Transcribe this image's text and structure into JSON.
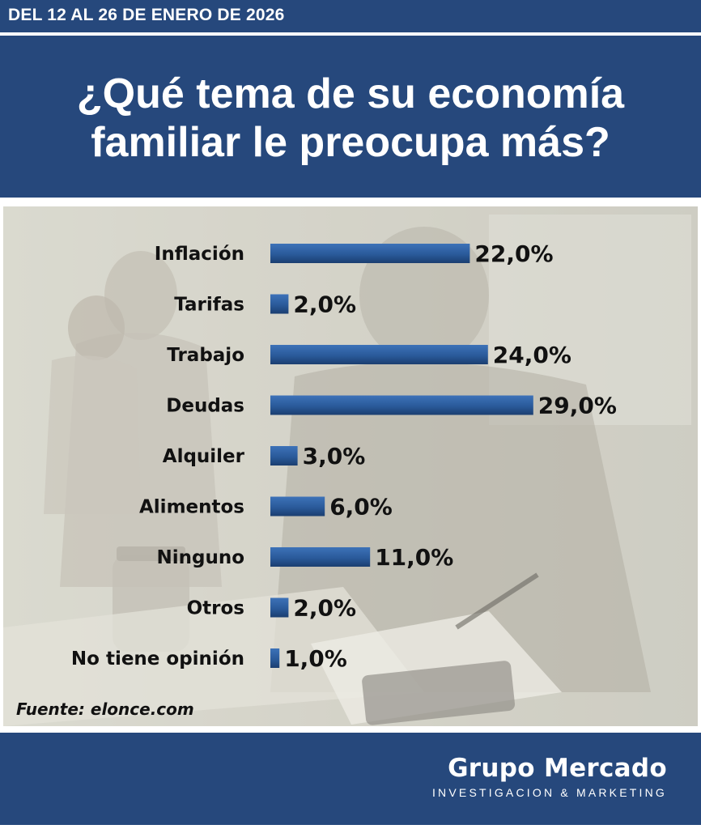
{
  "header": {
    "date_range": "DEL 12 AL 26 DE ENERO DE 2026"
  },
  "title": {
    "line1": "¿Qué tema de su economía",
    "line2": "familiar le preocupa más?"
  },
  "source": "Fuente: elonce.com",
  "brand": {
    "name": "Grupo Mercado",
    "tagline": "INVESTIGACION & MARKETING"
  },
  "colors": {
    "navy": "#26487c",
    "bar": "#2e5fa0",
    "bar_dark": "#1c3f73"
  },
  "chart_data": {
    "type": "bar",
    "orientation": "horizontal",
    "categories": [
      "Inflación",
      "Tarifas",
      "Trabajo",
      "Deudas",
      "Alquiler",
      "Alimentos",
      "Ninguno",
      "Otros",
      "No tiene opinión"
    ],
    "values": [
      22.0,
      2.0,
      24.0,
      29.0,
      3.0,
      6.0,
      11.0,
      2.0,
      1.0
    ],
    "value_labels": [
      "22,0%",
      "2,0%",
      "24,0%",
      "29,0%",
      "3,0%",
      "6,0%",
      "11,0%",
      "2,0%",
      "1,0%"
    ],
    "unit": "%",
    "grid": false,
    "legend": "none"
  }
}
